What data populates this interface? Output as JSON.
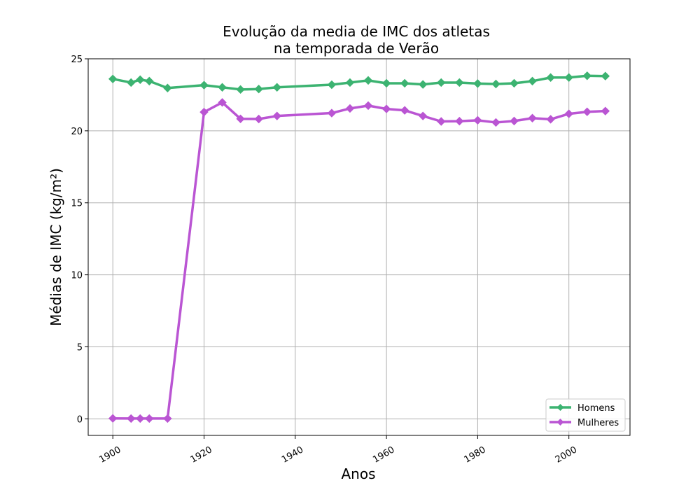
{
  "chart_data": {
    "type": "line",
    "title_lines": [
      "Evolução da media de IMC dos atletas",
      "na temporada de Verão"
    ],
    "xlabel": "Anos",
    "ylabel": "Médias de IMC (kg/m²)",
    "xlim": [
      1894.6,
      2013.4
    ],
    "ylim": [
      -1.15,
      25.0
    ],
    "x_ticks": [
      1900,
      1920,
      1940,
      1960,
      1980,
      2000
    ],
    "y_ticks": [
      0,
      5,
      10,
      15,
      20,
      25
    ],
    "grid": true,
    "legend_position": "lower-right",
    "x": [
      1900,
      1904,
      1906,
      1908,
      1912,
      1920,
      1924,
      1928,
      1932,
      1936,
      1948,
      1952,
      1956,
      1960,
      1964,
      1968,
      1972,
      1976,
      1980,
      1984,
      1988,
      1992,
      1996,
      2000,
      2004,
      2008
    ],
    "series": [
      {
        "name": "Homens",
        "color": "#3cb371",
        "marker": "diamond",
        "values": [
          23.6,
          23.35,
          23.55,
          23.45,
          22.97,
          23.17,
          23.02,
          22.87,
          22.9,
          23.02,
          23.2,
          23.35,
          23.5,
          23.3,
          23.3,
          23.22,
          23.35,
          23.35,
          23.28,
          23.25,
          23.3,
          23.45,
          23.7,
          23.7,
          23.82,
          23.8
        ]
      },
      {
        "name": "Mulheres",
        "color": "#ba55d3",
        "marker": "diamond",
        "values": [
          0.03,
          0.02,
          0.02,
          0.02,
          0.02,
          21.3,
          21.97,
          20.83,
          20.82,
          21.03,
          21.23,
          21.55,
          21.75,
          21.52,
          21.42,
          21.03,
          20.65,
          20.67,
          20.73,
          20.58,
          20.68,
          20.88,
          20.8,
          21.18,
          21.32,
          21.37
        ]
      }
    ]
  }
}
